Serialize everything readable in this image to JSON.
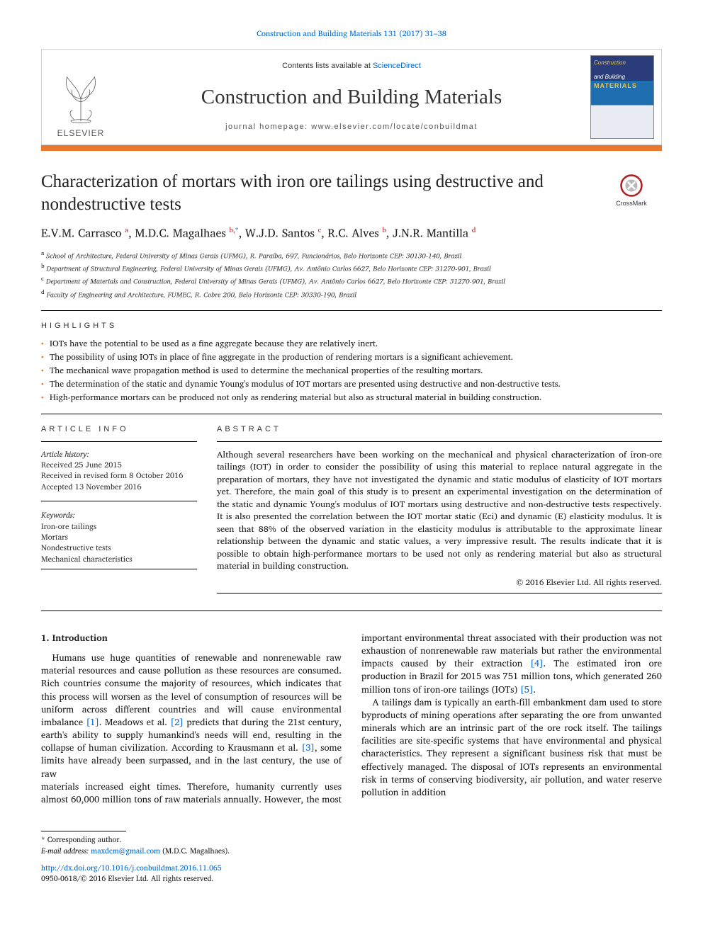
{
  "citation": "Construction and Building Materials 131 (2017) 31–38",
  "header": {
    "contents_prefix": "Contents lists available at ",
    "contents_link": "ScienceDirect",
    "journal_name": "Construction and Building Materials",
    "homepage_label": "journal homepage: www.elsevier.com/locate/conbuildmat",
    "publisher_word": "ELSEVIER",
    "cover": {
      "line1": "Construction",
      "line2": "and Building",
      "line3": "MATERIALS"
    }
  },
  "colors": {
    "accent_rule": "#e9762b",
    "link": "#0066cc",
    "cover_top": "#2a3d7a",
    "cover_mid": "#1f6fb0",
    "cover_yellow": "#e9c24a"
  },
  "title": "Characterization of mortars with iron ore tailings using destructive and nondestructive tests",
  "crossmark_label": "CrossMark",
  "authors_html": "E.V.M. Carrasco <sup class='affsup'>a</sup>, M.D.C. Magalhaes <sup class='affsup'>b,</sup><sup>*</sup>, W.J.D. Santos <sup class='affsup'>c</sup>, R.C. Alves <sup class='affsup'>b</sup>, J.N.R. Mantilla <sup class='affsup'>d</sup>",
  "affiliations": [
    {
      "key": "a",
      "text": "School of Architecture, Federal University of Minas Gerais (UFMG), R. Paraíba, 697, Funcionários, Belo Horizonte CEP: 30130-140, Brazil"
    },
    {
      "key": "b",
      "text": "Department of Structural Engineering, Federal University of Minas Gerais (UFMG), Av. Antônio Carlos 6627, Belo Horizonte CEP: 31270-901, Brazil"
    },
    {
      "key": "c",
      "text": "Department of Materials and Construction, Federal University of Minas Gerais (UFMG), Av. Antônio Carlos 6627, Belo Horizonte CEP: 31270-901, Brazil"
    },
    {
      "key": "d",
      "text": "Faculty of Engineering and Architecture, FUMEC, R. Cobre 200, Belo Horizonte CEP: 30330-190, Brazil"
    }
  ],
  "highlights_label": "HIGHLIGHTS",
  "highlights": [
    "IOTs have the potential to be used as a fine aggregate because they are relatively inert.",
    "The possibility of using IOTs in place of fine aggregate in the production of rendering mortars is a significant achievement.",
    "The mechanical wave propagation method is used to determine the mechanical properties of the resulting mortars.",
    "The determination of the static and dynamic Young's modulus of IOT mortars are presented using destructive and non-destructive tests.",
    "High-performance mortars can be produced not only as rendering material but also as structural material in building construction."
  ],
  "article_info_label": "ARTICLE INFO",
  "history_label": "Article history:",
  "history": [
    "Received 25 June 2015",
    "Received in revised form 8 October 2016",
    "Accepted 13 November 2016"
  ],
  "keywords_label": "Keywords:",
  "keywords": [
    "Iron-ore tailings",
    "Mortars",
    "Nondestructive tests",
    "Mechanical characteristics"
  ],
  "abstract_label": "ABSTRACT",
  "abstract_text": "Although several researchers have been working on the mechanical and physical characterization of iron-ore tailings (IOT) in order to consider the possibility of using this material to replace natural aggregate in the preparation of mortars, they have not investigated the dynamic and static modulus of elasticity of IOT mortars yet. Therefore, the main goal of this study is to present an experimental investigation on the determination of the static and dynamic Young's modulus of IOT mortars using destructive and non-destructive tests respectively. It is also presented the correlation between the IOT mortar static (Eci) and dynamic (E) elasticity modulus. It is seen that 88% of the observed variation in the elasticity modulus is attributable to the approximate linear relationship between the dynamic and static values, a very impressive result. The results indicate that it is possible to obtain high-performance mortars to be used not only as rendering material but also as structural material in building construction.",
  "copyright_line": "© 2016 Elsevier Ltd. All rights reserved.",
  "section1_heading": "1. Introduction",
  "body_para_1a": "Humans use huge quantities of renewable and nonrenewable raw material resources and cause pollution as these resources are consumed. Rich countries consume the majority of resources, which indicates that this process will worsen as the level of consumption of resources will be uniform across different countries and will cause environmental imbalance ",
  "ref1": "[1]",
  "body_para_1b": ". Meadows et al. ",
  "ref2": "[2]",
  "body_para_1c": " predicts that during the 21st century, earth's ability to supply humankind's needs will end, resulting in the collapse of human civilization. According to Krausmann et al. ",
  "ref3": "[3]",
  "body_para_1d": ", some limits have already been surpassed, and in the last century, the use of raw",
  "body_para_2a": "materials increased eight times. Therefore, humanity currently uses almost 60,000 million tons of raw materials annually. However, the most important environmental threat associated with their production was not exhaustion of nonrenewable raw materials but rather the environmental impacts caused by their extraction ",
  "ref4": "[4]",
  "body_para_2b": ". The estimated iron ore production in Brazil for 2015 was 751 million tons, which generated 260 million tons of iron-ore tailings (IOTs) ",
  "ref5": "[5]",
  "body_para_2c": ".",
  "body_para_3": "A tailings dam is typically an earth-fill embankment dam used to store byproducts of mining operations after separating the ore from unwanted minerals which are an intrinsic part of the ore rock itself. The tailings facilities are site-specific systems that have environmental and physical characteristics. They represent a significant business risk that must be effectively managed. The disposal of IOTs represents an environmental risk in terms of conserving biodiversity, air pollution, and water reserve pollution in addition",
  "footnote_corresponding": "Corresponding author.",
  "footnote_email_label": "E-mail address:",
  "footnote_email": "maxdcm@gmail.com",
  "footnote_email_who": "(M.D.C. Magalhaes).",
  "doi": "http://dx.doi.org/10.1016/j.conbuildmat.2016.11.065",
  "issn_line": "0950-0618/© 2016 Elsevier Ltd. All rights reserved."
}
